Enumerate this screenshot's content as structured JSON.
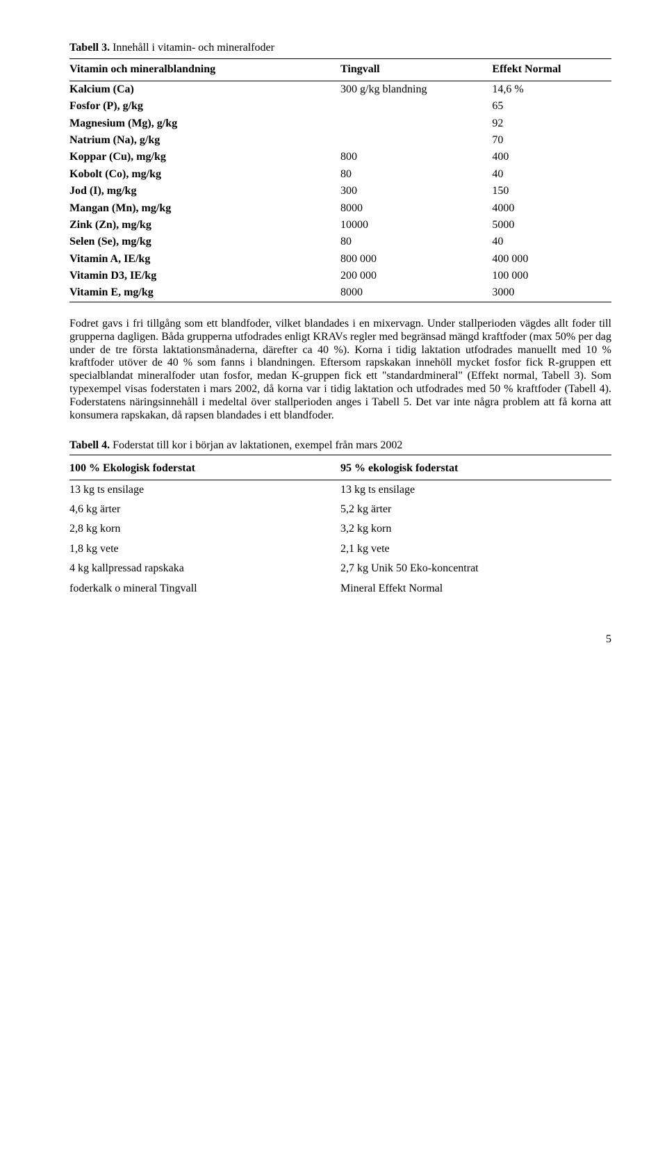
{
  "table3": {
    "caption_bold": "Tabell 3.",
    "caption_rest": " Innehåll i vitamin- och mineralfoder",
    "head_c1": "Vitamin och mineralblandning",
    "head_c2": "Tingvall",
    "head_c3": "Effekt Normal",
    "rows": [
      {
        "label": "Kalcium (Ca)",
        "tv": "300 g/kg blandning",
        "en": "14,6 %"
      },
      {
        "label": "Fosfor (P), g/kg",
        "tv": "",
        "en": "65"
      },
      {
        "label": "Magnesium (Mg), g/kg",
        "tv": "",
        "en": "92"
      },
      {
        "label": "Natrium (Na), g/kg",
        "tv": "",
        "en": "70"
      },
      {
        "label": "Koppar (Cu), mg/kg",
        "tv": "800",
        "en": "400"
      },
      {
        "label": "Kobolt (Co), mg/kg",
        "tv": "80",
        "en": "40"
      },
      {
        "label": "Jod (I), mg/kg",
        "tv": "300",
        "en": "150"
      },
      {
        "label": "Mangan (Mn), mg/kg",
        "tv": "8000",
        "en": "4000"
      },
      {
        "label": "Zink (Zn), mg/kg",
        "tv": "10000",
        "en": "5000"
      },
      {
        "label": "Selen (Se), mg/kg",
        "tv": "80",
        "en": "40"
      },
      {
        "label": "Vitamin A, IE/kg",
        "tv": "800 000",
        "en": "400 000"
      },
      {
        "label": "Vitamin D3, IE/kg",
        "tv": "200 000",
        "en": "100 000"
      },
      {
        "label": "Vitamin E, mg/kg",
        "tv": "8000",
        "en": "3000"
      }
    ]
  },
  "paragraph": "Fodret gavs i fri tillgång som ett blandfoder, vilket blandades i en mixervagn. Under stallperioden vägdes allt foder till grupperna dagligen. Båda grupperna utfodrades enligt KRAVs regler med begränsad mängd kraftfoder (max 50% per dag under de tre första laktationsmånaderna, därefter ca 40 %). Korna i tidig laktation utfodrades manuellt med 10 % kraftfoder utöver de 40 % som fanns i blandningen. Eftersom rapskakan innehöll mycket fosfor fick R-gruppen ett specialblandat mineralfoder utan fosfor, medan K-gruppen fick ett \"standardmineral\" (Effekt normal, Tabell 3). Som typexempel visas foderstaten i mars 2002, då korna var i tidig laktation och utfodrades med 50 % kraftfoder (Tabell 4). Foderstatens näringsinnehåll i medeltal över stallperioden anges i Tabell 5. Det var inte några problem att få korna att konsumera rapskakan, då rapsen blandades i ett blandfoder.",
  "table4": {
    "caption_bold": "Tabell 4.",
    "caption_rest": " Foderstat till kor i början av laktationen, exempel från mars 2002",
    "head_l": "100 % Ekologisk foderstat",
    "head_r": "95 % ekologisk foderstat",
    "rows": [
      {
        "l": "13 kg ts ensilage",
        "r": "13 kg ts ensilage"
      },
      {
        "l": "4,6 kg ärter",
        "r": "5,2 kg ärter"
      },
      {
        "l": "2,8 kg korn",
        "r": "3,2 kg korn"
      },
      {
        "l": "1,8 kg vete",
        "r": "2,1 kg vete"
      },
      {
        "l": "4 kg kallpressad rapskaka",
        "r": "2,7 kg Unik 50 Eko-koncentrat"
      },
      {
        "l": "foderkalk o mineral Tingvall",
        "r": "Mineral Effekt Normal"
      }
    ]
  },
  "page_number": "5"
}
